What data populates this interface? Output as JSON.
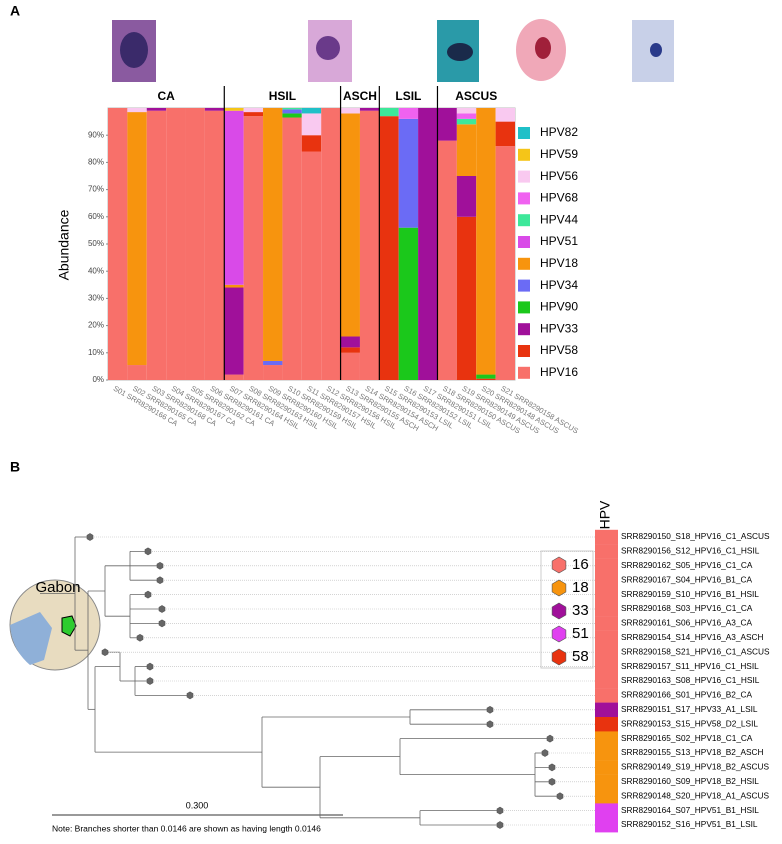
{
  "panels": [
    "A",
    "B"
  ],
  "chart_data": {
    "type": "stacked-bar",
    "y_label": "Abundance",
    "groups": [
      "CA",
      "HSIL",
      "ASCH",
      "LSIL",
      "ASCUS"
    ],
    "categories": [
      "S01 SRR8290166 CA",
      "S02 SRR8290165 CA",
      "S03 SRR8290168 CA",
      "S04 SRR8290167 CA",
      "S05 SRR8290162 CA",
      "S06 SRR8290161 CA",
      "S07 SRR8290164 HSIL",
      "S08 SRR8290163 HSIL",
      "S09 SRR8290160 HSIL",
      "S10 SRR8290159 HSIL",
      "S11 SRR8290157 HSIL",
      "S12 SRR8290156 HSIL",
      "S13 SRR8290155 ASCH",
      "S14 SRR8290154 ASCH",
      "S15 SRR8290153 LSIL",
      "S16 SRR8290152 LSIL",
      "S17 SRR8290151 LSIL",
      "S18 SRR8290150 ASCUS",
      "S19 SRR8290149 ASCUS",
      "S20 SRR8290148 ASCUS",
      "S21 SRR8290158 ASCUS"
    ],
    "series": [
      {
        "name": "HPV16",
        "color": "#f8706a",
        "values": [
          100,
          5.5,
          99,
          100,
          100,
          99,
          2,
          97,
          5.5,
          96.5,
          84,
          100,
          10,
          99,
          0,
          0,
          0,
          88,
          0,
          0,
          86
        ]
      },
      {
        "name": "HPV58",
        "color": "#e8330f",
        "values": [
          0,
          0,
          0,
          0,
          0,
          0,
          0,
          1.5,
          0,
          0,
          6,
          0,
          2,
          0,
          97,
          0,
          0,
          0,
          60,
          0.5,
          9
        ]
      },
      {
        "name": "HPV33",
        "color": "#a0109a",
        "values": [
          0,
          0,
          1,
          0,
          0,
          1,
          32,
          0,
          0,
          0,
          0,
          0,
          4,
          1,
          0,
          0,
          100,
          12,
          15,
          0,
          0
        ]
      },
      {
        "name": "HPV90",
        "color": "#1bc81b",
        "values": [
          0,
          0,
          0,
          0,
          0,
          0,
          0,
          0,
          0,
          1.5,
          0,
          0,
          0,
          0,
          0,
          56,
          0,
          0,
          0,
          1.5,
          0
        ]
      },
      {
        "name": "HPV34",
        "color": "#6b6bf5",
        "values": [
          0,
          0,
          0,
          0,
          0,
          0,
          0,
          0,
          1.5,
          1.5,
          0,
          0,
          0,
          0,
          0,
          40,
          0,
          0,
          0,
          0,
          0
        ]
      },
      {
        "name": "HPV18",
        "color": "#f7940e",
        "values": [
          0,
          93,
          0,
          0,
          0,
          0,
          1,
          0,
          93,
          0,
          0,
          0,
          82,
          0,
          0,
          0,
          0,
          0,
          19,
          98,
          0
        ]
      },
      {
        "name": "HPV51",
        "color": "#d94ae8",
        "values": [
          0,
          0,
          0,
          0,
          0,
          0,
          64,
          0,
          0,
          0,
          0,
          0,
          0,
          0,
          0,
          0,
          0,
          0,
          0,
          0,
          0
        ]
      },
      {
        "name": "HPV44",
        "color": "#3de89a",
        "values": [
          0,
          0,
          0,
          0,
          0,
          0,
          0,
          0,
          0,
          0.5,
          0,
          0,
          0,
          0,
          3,
          0,
          0,
          0,
          2,
          0,
          0
        ]
      },
      {
        "name": "HPV68",
        "color": "#f062f0",
        "values": [
          0,
          0,
          0,
          0,
          0,
          0,
          0,
          0,
          0,
          0,
          0,
          0,
          0,
          0,
          0,
          4,
          0,
          0,
          2,
          0,
          0
        ]
      },
      {
        "name": "HPV56",
        "color": "#f9c9f0",
        "values": [
          0,
          1.5,
          0,
          0,
          0,
          0,
          0,
          1.5,
          0,
          0,
          8,
          0,
          2,
          0,
          0,
          0,
          0,
          0,
          2,
          0,
          5
        ]
      },
      {
        "name": "HPV59",
        "color": "#f5c518",
        "values": [
          0,
          0,
          0,
          0,
          0,
          0,
          1,
          0,
          0,
          0,
          0,
          0,
          0,
          0,
          0,
          0,
          0,
          0,
          0,
          0,
          0
        ]
      },
      {
        "name": "HPV82",
        "color": "#1fc0c8",
        "values": [
          0,
          0,
          0,
          0,
          0,
          0,
          0,
          0,
          0,
          0,
          2,
          0,
          0,
          0,
          0,
          0,
          0,
          0,
          0,
          0,
          0
        ]
      }
    ],
    "ylim": [
      0,
      100
    ],
    "yticks": [
      {
        "value": 0,
        "label": "0%"
      },
      {
        "value": 10,
        "label": "10%"
      },
      {
        "value": 20,
        "label": "20%"
      },
      {
        "value": 30,
        "label": "30%"
      },
      {
        "value": 40,
        "label": "40%"
      },
      {
        "value": 50,
        "label": "50%"
      },
      {
        "value": 60,
        "label": "60%"
      },
      {
        "value": 70,
        "label": "70%"
      },
      {
        "value": 80,
        "label": "80%"
      },
      {
        "value": 90,
        "label": "90%"
      }
    ],
    "legend": "right"
  },
  "tree": {
    "header": "HPV",
    "leaves": [
      "SRR8290150_S18_HPV16_C1_ASCUS",
      "SRR8290156_S12_HPV16_C1_HSIL",
      "SRR8290162_S05_HPV16_C1_CA",
      "SRR8290167_S04_HPV16_B1_CA",
      "SRR8290159_S10_HPV16_B1_HSIL",
      "SRR8290168_S03_HPV16_C1_CA",
      "SRR8290161_S06_HPV16_A3_CA",
      "SRR8290154_S14_HPV16_A3_ASCH",
      "SRR8290158_S21_HPV16_C1_ASCUS",
      "SRR8290157_S11_HPV16_C1_HSIL",
      "SRR8290163_S08_HPV16_C1_HSIL",
      "SRR8290166_S01_HPV16_B2_CA",
      "SRR8290151_S17_HPV33_A1_LSIL",
      "SRR8290153_S15_HPV58_D2_LSIL",
      "SRR8290165_S02_HPV18_C1_CA",
      "SRR8290155_S13_HPV18_B2_ASCH",
      "SRR8290149_S19_HPV18_B2_ASCUS",
      "SRR8290160_S09_HPV18_B2_HSIL",
      "SRR8290148_S20_HPV18_A1_ASCUS",
      "SRR8290164_S07_HPV51_B1_HSIL",
      "SRR8290152_S16_HPV51_B1_LSIL"
    ],
    "legend": [
      {
        "label": "16",
        "color": "#f8706a"
      },
      {
        "label": "18",
        "color": "#f7940e"
      },
      {
        "label": "33",
        "color": "#a0109a"
      },
      {
        "label": "51",
        "color": "#e040f0"
      },
      {
        "label": "58",
        "color": "#e8330f"
      }
    ],
    "scale_label": "0.300",
    "note": "Note: Branches shorter than 0.0146 are shown as having length 0.0146",
    "map_label": "Gabon"
  }
}
